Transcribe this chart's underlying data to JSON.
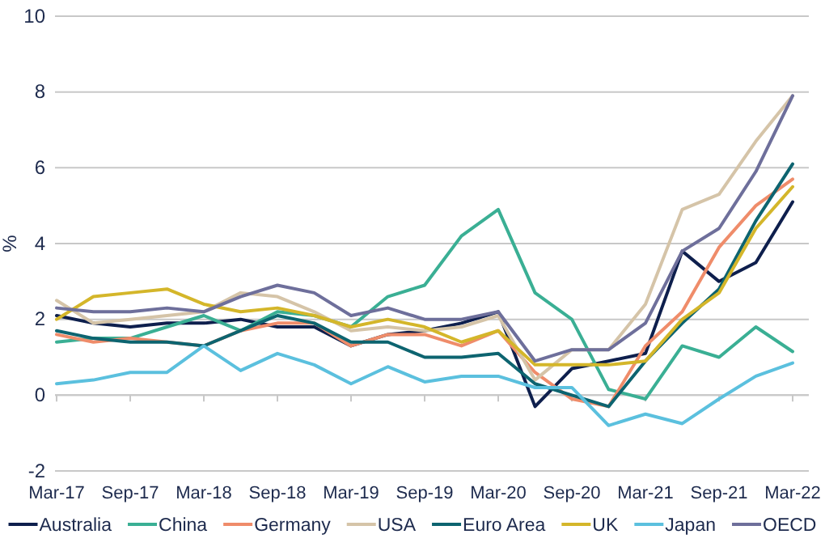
{
  "chart_data": {
    "type": "line",
    "ylabel": "%",
    "categories": [
      "Mar-17",
      null,
      "Sep-17",
      null,
      "Mar-18",
      null,
      "Sep-18",
      null,
      "Mar-19",
      null,
      "Sep-19",
      null,
      "Mar-20",
      null,
      "Sep-20",
      null,
      "Mar-21",
      null,
      "Sep-21",
      null,
      "Mar-22"
    ],
    "ylim": [
      -2,
      10
    ],
    "yticks": [
      -2,
      0,
      2,
      4,
      6,
      8,
      10
    ],
    "grid": "y",
    "legend": "bottom",
    "line_style": "solid",
    "marker": "none",
    "series": [
      {
        "name": "Australia",
        "color": "#0e1f4d",
        "values": [
          2.1,
          1.9,
          1.8,
          1.9,
          1.9,
          2.0,
          1.8,
          1.8,
          1.3,
          1.6,
          1.7,
          1.9,
          2.2,
          -0.3,
          0.7,
          0.9,
          1.1,
          3.8,
          3.0,
          3.5,
          5.1
        ]
      },
      {
        "name": "China",
        "color": "#3aaf94",
        "values": [
          1.4,
          1.5,
          1.5,
          1.8,
          2.1,
          1.7,
          2.2,
          2.1,
          1.8,
          2.6,
          2.9,
          4.2,
          4.9,
          2.7,
          2.0,
          0.15,
          -0.1,
          1.3,
          1.0,
          1.8,
          1.15
        ]
      },
      {
        "name": "Germany",
        "color": "#ef8c6a",
        "values": [
          1.6,
          1.4,
          1.5,
          1.4,
          1.3,
          1.7,
          1.9,
          1.9,
          1.3,
          1.6,
          1.6,
          1.3,
          1.7,
          0.6,
          -0.1,
          -0.3,
          1.3,
          2.2,
          3.9,
          5.0,
          5.7
        ]
      },
      {
        "name": "USA",
        "color": "#d5c4a8",
        "values": [
          2.5,
          1.9,
          2.0,
          2.1,
          2.2,
          2.7,
          2.6,
          2.2,
          1.7,
          1.8,
          1.7,
          1.8,
          2.1,
          0.4,
          1.2,
          1.2,
          2.4,
          4.9,
          5.3,
          6.7,
          7.9
        ]
      },
      {
        "name": "Euro Area",
        "color": "#0d6470",
        "values": [
          1.7,
          1.5,
          1.4,
          1.4,
          1.3,
          1.7,
          2.1,
          1.9,
          1.4,
          1.4,
          1.0,
          1.0,
          1.1,
          0.3,
          0.0,
          -0.3,
          0.9,
          1.9,
          2.8,
          4.6,
          6.1
        ]
      },
      {
        "name": "UK",
        "color": "#d4b62a",
        "values": [
          2.0,
          2.6,
          2.7,
          2.8,
          2.4,
          2.2,
          2.3,
          2.1,
          1.8,
          2.0,
          1.8,
          1.4,
          1.7,
          0.8,
          0.8,
          0.8,
          0.9,
          2.0,
          2.7,
          4.4,
          5.5
        ]
      },
      {
        "name": "Japan",
        "color": "#5bc0de",
        "values": [
          0.3,
          0.4,
          0.6,
          0.6,
          1.3,
          0.65,
          1.1,
          0.8,
          0.3,
          0.75,
          0.35,
          0.5,
          0.5,
          0.2,
          0.2,
          -0.8,
          -0.5,
          -0.75,
          -0.1,
          0.5,
          0.85
        ]
      },
      {
        "name": "OECD",
        "color": "#6e6f9b",
        "values": [
          2.3,
          2.2,
          2.2,
          2.3,
          2.2,
          2.6,
          2.9,
          2.7,
          2.1,
          2.3,
          2.0,
          2.0,
          2.2,
          0.9,
          1.2,
          1.2,
          1.9,
          3.8,
          4.4,
          5.9,
          7.9
        ]
      }
    ]
  }
}
